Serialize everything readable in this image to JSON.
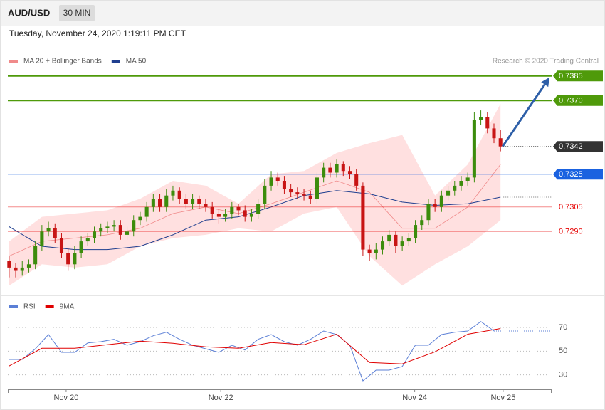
{
  "header": {
    "symbol": "AUD/USD",
    "timeframe": "30 MIN",
    "timestamp": "Tuesday, November 24, 2020 1:19:11 PM CET"
  },
  "chart_data": [
    {
      "type": "candlestick",
      "source": "Research © 2020 Trading Central",
      "up_color": "#3c8c0c",
      "down_color": "#c81414",
      "xlim": [
        -0.2,
        82.8
      ],
      "ylim": [
        0.7251,
        0.7401
      ],
      "ohlc": {
        "open": [
          0.7272,
          0.7268,
          0.7266,
          0.7268,
          0.727,
          0.7281,
          0.729,
          0.7292,
          0.7286,
          0.7277,
          0.727,
          0.7277,
          0.7284,
          0.7286,
          0.729,
          0.7292,
          0.7293,
          0.7294,
          0.7288,
          0.729,
          0.7297,
          0.7299,
          0.7305,
          0.731,
          0.7305,
          0.7312,
          0.7315,
          0.731,
          0.7307,
          0.731,
          0.7307,
          0.7305,
          0.7301,
          0.7299,
          0.7301,
          0.7305,
          0.7303,
          0.7299,
          0.7301,
          0.7307,
          0.7318,
          0.7323,
          0.7321,
          0.7316,
          0.7314,
          0.7313,
          0.7312,
          0.731,
          0.7323,
          0.7329,
          0.7326,
          0.7331,
          0.7327,
          0.7325,
          0.7318,
          0.7279,
          0.7277,
          0.7279,
          0.7284,
          0.7288,
          0.7281,
          0.7284,
          0.7286,
          0.7294,
          0.7297,
          0.7307,
          0.7305,
          0.7312,
          0.7315,
          0.7318,
          0.7321,
          0.7323,
          0.7358,
          0.736,
          0.7353,
          0.7347
        ],
        "high": [
          0.7275,
          0.7271,
          0.7272,
          0.7273,
          0.7284,
          0.7294,
          0.7296,
          0.7295,
          0.7289,
          0.728,
          0.7281,
          0.7287,
          0.7289,
          0.7293,
          0.7295,
          0.7296,
          0.7297,
          0.7297,
          0.7293,
          0.73,
          0.7302,
          0.7308,
          0.7313,
          0.7313,
          0.7316,
          0.7318,
          0.7317,
          0.7313,
          0.7313,
          0.7312,
          0.731,
          0.7308,
          0.7304,
          0.7304,
          0.7308,
          0.7307,
          0.7306,
          0.7304,
          0.731,
          0.7322,
          0.7327,
          0.7326,
          0.7324,
          0.7319,
          0.7317,
          0.7316,
          0.7315,
          0.7326,
          0.7332,
          0.7332,
          0.7334,
          0.7333,
          0.733,
          0.7328,
          0.732,
          0.7282,
          0.7283,
          0.7287,
          0.7291,
          0.729,
          0.7287,
          0.7289,
          0.7297,
          0.73,
          0.731,
          0.731,
          0.7315,
          0.7318,
          0.7321,
          0.7324,
          0.7326,
          0.7363,
          0.7364,
          0.7363,
          0.7356,
          0.7352
        ],
        "low": [
          0.7262,
          0.7262,
          0.7263,
          0.7265,
          0.7267,
          0.7278,
          0.7287,
          0.7283,
          0.7274,
          0.7266,
          0.7267,
          0.7274,
          0.7281,
          0.7283,
          0.7287,
          0.7289,
          0.729,
          0.7285,
          0.7285,
          0.7287,
          0.7294,
          0.7296,
          0.7302,
          0.7302,
          0.7302,
          0.7309,
          0.7307,
          0.7304,
          0.7304,
          0.7304,
          0.7302,
          0.7298,
          0.7295,
          0.7296,
          0.7298,
          0.73,
          0.7296,
          0.7296,
          0.7298,
          0.7304,
          0.7315,
          0.7318,
          0.7313,
          0.7311,
          0.731,
          0.7309,
          0.7307,
          0.7307,
          0.732,
          0.7323,
          0.7323,
          0.7324,
          0.7322,
          0.7315,
          0.7275,
          0.7272,
          0.7273,
          0.7276,
          0.7281,
          0.7277,
          0.7278,
          0.7281,
          0.7283,
          0.7291,
          0.7294,
          0.7302,
          0.7302,
          0.7309,
          0.7312,
          0.7315,
          0.7318,
          0.732,
          0.7355,
          0.735,
          0.7344,
          0.7339
        ],
        "close": [
          0.7268,
          0.7266,
          0.7268,
          0.727,
          0.7281,
          0.729,
          0.7292,
          0.7286,
          0.7277,
          0.727,
          0.7277,
          0.7284,
          0.7286,
          0.729,
          0.7292,
          0.7293,
          0.7294,
          0.7288,
          0.729,
          0.7297,
          0.7299,
          0.7305,
          0.731,
          0.7305,
          0.7312,
          0.7315,
          0.731,
          0.7307,
          0.731,
          0.7307,
          0.7305,
          0.7301,
          0.7299,
          0.7301,
          0.7305,
          0.7303,
          0.7299,
          0.7301,
          0.7307,
          0.7318,
          0.7323,
          0.7321,
          0.7316,
          0.7314,
          0.7313,
          0.7312,
          0.731,
          0.7323,
          0.7329,
          0.7326,
          0.7331,
          0.7327,
          0.7325,
          0.7318,
          0.7279,
          0.7277,
          0.7279,
          0.7284,
          0.7288,
          0.7281,
          0.7284,
          0.7286,
          0.7294,
          0.7297,
          0.7307,
          0.7305,
          0.7312,
          0.7315,
          0.7318,
          0.7321,
          0.7323,
          0.7358,
          0.736,
          0.7353,
          0.7347,
          0.7342
        ]
      },
      "series": [
        {
          "name": "MA 20 + Bollinger Bands",
          "color": "#f08a8a",
          "band_color": "#ffd6d6",
          "x": [
            0,
            5,
            10,
            15,
            20,
            25,
            30,
            35,
            40,
            45,
            50,
            55,
            60,
            65,
            70,
            75
          ],
          "values": [
            0.7275,
            0.7284,
            0.7286,
            0.7288,
            0.7292,
            0.7301,
            0.7305,
            0.7301,
            0.7307,
            0.7314,
            0.7321,
            0.7314,
            0.7292,
            0.7292,
            0.7305,
            0.7331
          ],
          "upper": [
            0.7284,
            0.7299,
            0.7301,
            0.7303,
            0.731,
            0.7321,
            0.7318,
            0.7307,
            0.7325,
            0.7327,
            0.7338,
            0.7344,
            0.7349,
            0.7312,
            0.7331,
            0.7368
          ],
          "lower": [
            0.7257,
            0.727,
            0.7268,
            0.727,
            0.7281,
            0.7286,
            0.7288,
            0.7292,
            0.729,
            0.7301,
            0.7305,
            0.7275,
            0.7257,
            0.727,
            0.7281,
            0.7297
          ]
        },
        {
          "name": "MA 50",
          "color": "#1f3f8f",
          "x": [
            0,
            5,
            10,
            15,
            20,
            25,
            30,
            35,
            40,
            45,
            50,
            55,
            60,
            65,
            70,
            75
          ],
          "values": [
            0.7293,
            0.7281,
            0.7279,
            0.7279,
            0.7281,
            0.7288,
            0.7297,
            0.7299,
            0.7305,
            0.7312,
            0.7315,
            0.7313,
            0.7308,
            0.7306,
            0.7307,
            0.7311
          ]
        }
      ],
      "levels": [
        {
          "value": 0.7385,
          "color": "#4f9a0a",
          "boxed": true,
          "line": "solid"
        },
        {
          "value": 0.737,
          "label": "0.7370",
          "color": "#4f9a0a",
          "boxed": true,
          "line": "solid"
        },
        {
          "value": 0.7342,
          "color": "#333333",
          "boxed": true,
          "line": "dotted"
        },
        {
          "value": 0.7325,
          "color": "#1a62e0",
          "boxed": true,
          "line": "solid"
        },
        {
          "value": 0.7305,
          "color": "#e60000",
          "boxed": false,
          "line": "solid"
        },
        {
          "value": 0.729,
          "label": "0.7290",
          "color": "#e60000",
          "boxed": false,
          "line": "solid"
        }
      ]
    },
    {
      "type": "line",
      "xlim": [
        -0.2,
        82.8
      ],
      "ylim": [
        19,
        94
      ],
      "yticks": [
        30,
        50,
        70
      ],
      "xticks": [
        {
          "value": 8.7,
          "label": "Nov 20"
        },
        {
          "value": 32.3,
          "label": "Nov 22"
        },
        {
          "value": 61.9,
          "label": "Nov 24"
        },
        {
          "value": 75.4,
          "label": "Nov 25"
        }
      ],
      "series": [
        {
          "name": "RSI",
          "color": "#5b7fd6",
          "x": [
            0,
            2,
            4,
            6,
            8,
            10,
            12,
            14,
            16,
            18,
            20,
            22,
            24,
            26,
            28,
            30,
            32,
            34,
            36,
            38,
            40,
            42,
            44,
            46,
            48,
            50,
            52,
            54,
            56,
            58,
            60,
            62,
            64,
            66,
            68,
            70,
            72,
            74
          ],
          "values": [
            43,
            43,
            52,
            64,
            49,
            49,
            57,
            58,
            60,
            55,
            58,
            63,
            66,
            60,
            55,
            52,
            49,
            55,
            51,
            60,
            64,
            58,
            55,
            60,
            67,
            64,
            55,
            25,
            34,
            34,
            37,
            55,
            55,
            64,
            66,
            67,
            75,
            67
          ]
        },
        {
          "name": "9MA",
          "color": "#e00000",
          "x": [
            0,
            5,
            10,
            15,
            20,
            25,
            30,
            35,
            40,
            45,
            50,
            55,
            60,
            65,
            70,
            75
          ],
          "values": [
            37.5,
            52.4,
            52.4,
            55.4,
            58.4,
            56.6,
            53.6,
            52.4,
            57.2,
            55.4,
            64.3,
            40.4,
            39.3,
            49.4,
            64.3,
            69.1
          ]
        }
      ]
    }
  ]
}
